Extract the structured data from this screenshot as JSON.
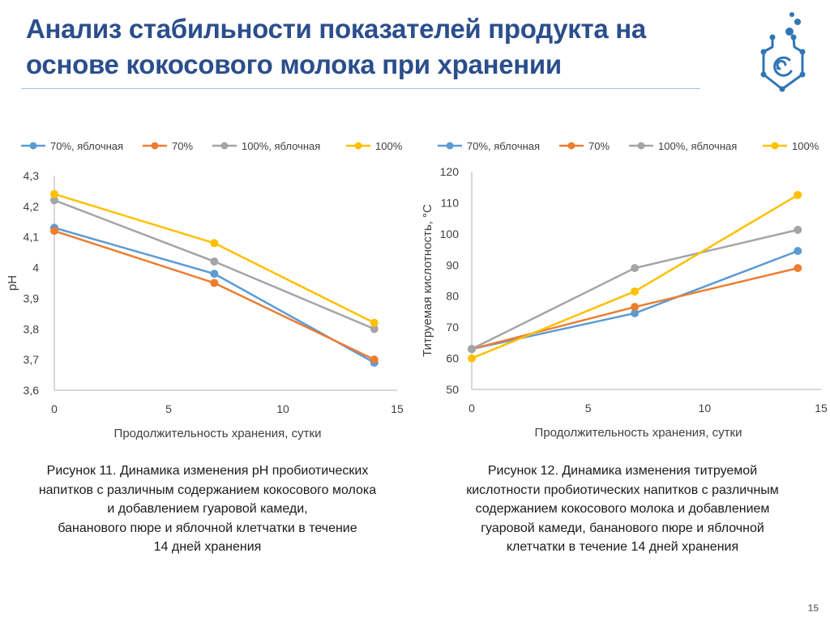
{
  "slide": {
    "title_line1": "Анализ стабильности показателей продукта на",
    "title_line2": "основе кокосового молока при хранении",
    "page_number": "15",
    "logo_icon": "flask-molecule-icon",
    "accent_color": "#2b4e8c",
    "rule_color": "#9dc3e6"
  },
  "captions": {
    "fig11": [
      "Рисунок 11. Динамика изменения pH пробиотических",
      "напитков с различным содержанием кокосового молока",
      "и добавлением гуаровой камеди,",
      "бананового пюре и яблочной клетчатки в течение",
      "14 дней хранения"
    ],
    "fig12": [
      "Рисунок 12. Динамика изменения титруемой",
      "кислотности пробиотических напитков с различным",
      "содержанием кокосового молока и добавлением",
      "гуаровой камеди, бананового пюре и яблочной",
      "клетчатки в течение 14 дней хранения"
    ]
  },
  "chart_data": [
    {
      "type": "line",
      "title": "",
      "xlabel": "Продолжительность хранения, сутки",
      "ylabel": "pH",
      "x": [
        0,
        7,
        14
      ],
      "xlim": [
        0,
        15
      ],
      "ylim": [
        3.6,
        4.3
      ],
      "xticks": [
        0,
        5,
        10,
        15
      ],
      "xtick_labels": [
        "0",
        "5",
        "10",
        "15"
      ],
      "yticks": [
        3.6,
        3.7,
        3.8,
        3.9,
        4.0,
        4.1,
        4.2,
        4.3
      ],
      "ytick_labels": [
        "3,6",
        "3,7",
        "3,8",
        "3,9",
        "4",
        "4,1",
        "4,2",
        "4,3"
      ],
      "grid": false,
      "legend_position": "top",
      "series": [
        {
          "name": "70%, яблочная",
          "color": "#5b9bd5",
          "values": [
            4.13,
            3.98,
            3.69
          ]
        },
        {
          "name": "70%",
          "color": "#ed7d31",
          "values": [
            4.12,
            3.95,
            3.7
          ]
        },
        {
          "name": "100%, яблочная",
          "color": "#a5a5a5",
          "values": [
            4.22,
            4.02,
            3.8
          ]
        },
        {
          "name": "100%",
          "color": "#ffc000",
          "values": [
            4.24,
            4.08,
            3.82
          ]
        }
      ]
    },
    {
      "type": "line",
      "title": "",
      "xlabel": "Продолжительность хранения, сутки",
      "ylabel": "Титруемая кислотность, °С",
      "x": [
        0,
        7,
        14
      ],
      "xlim": [
        0,
        15
      ],
      "ylim": [
        50,
        120
      ],
      "xticks": [
        0,
        5,
        10,
        15
      ],
      "xtick_labels": [
        "0",
        "5",
        "10",
        "15"
      ],
      "yticks": [
        50,
        60,
        70,
        80,
        90,
        100,
        110,
        120
      ],
      "ytick_labels": [
        "50",
        "60",
        "70",
        "80",
        "90",
        "100",
        "110",
        "120"
      ],
      "grid": false,
      "legend_position": "top",
      "series": [
        {
          "name": "70%, яблочная",
          "color": "#5b9bd5",
          "values": [
            63,
            74.5,
            94.5
          ]
        },
        {
          "name": "70%",
          "color": "#ed7d31",
          "values": [
            63,
            76.5,
            89
          ]
        },
        {
          "name": "100%, яблочная",
          "color": "#a5a5a5",
          "values": [
            63,
            89,
            101.3
          ]
        },
        {
          "name": "100%",
          "color": "#ffc000",
          "values": [
            60,
            81.5,
            112.5
          ]
        }
      ]
    }
  ]
}
